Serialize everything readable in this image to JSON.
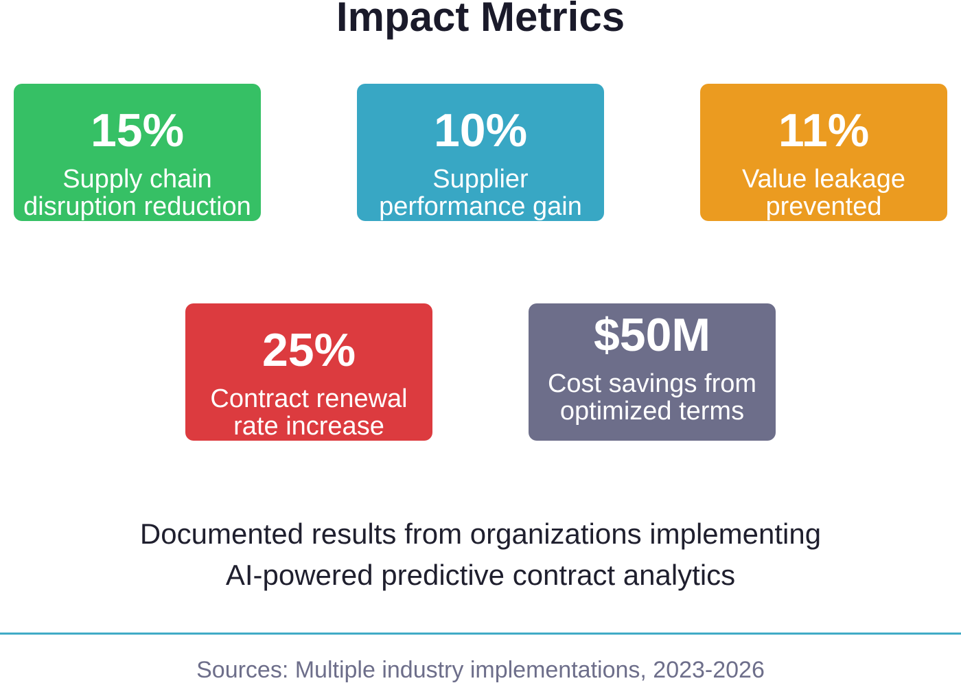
{
  "header": {
    "title": "Impact Metrics"
  },
  "metrics": [
    {
      "value": "15%",
      "label": [
        "Supply chain",
        "disruption reduction"
      ],
      "color": "#36c065"
    },
    {
      "value": "10%",
      "label": [
        "Supplier",
        "performance gain"
      ],
      "color": "#38a7c4"
    },
    {
      "value": "11%",
      "label": [
        "Value leakage",
        "prevented"
      ],
      "color": "#eb9b20"
    },
    {
      "value": "25%",
      "label": [
        "Contract renewal",
        "rate increase"
      ],
      "color": "#dc3b3f"
    },
    {
      "value": "$50M",
      "label": [
        "Cost savings from",
        "optimized terms"
      ],
      "color": "#6d6e8a"
    }
  ],
  "description": [
    "Documented results from organizations implementing",
    "AI-powered predictive contract analytics"
  ],
  "footer": {
    "sources": "Sources: Multiple industry implementations, 2023-2026"
  }
}
